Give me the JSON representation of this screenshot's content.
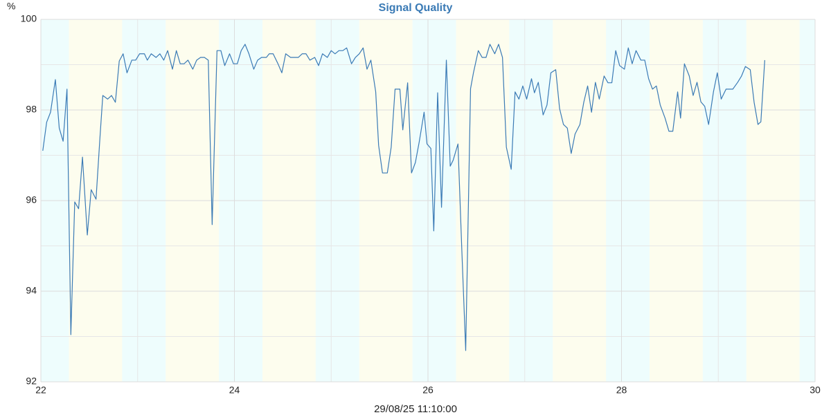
{
  "chart_data": {
    "type": "line",
    "title": "Signal Quality",
    "y_unit_label": "%",
    "x_label": "29/08/25 11:10:00",
    "color": "#3a7ab5",
    "xlim": [
      22,
      30
    ],
    "xticks": [
      22,
      24,
      26,
      28,
      30
    ],
    "x_minor_grid": [
      23,
      25,
      27,
      29
    ],
    "ylim": [
      92,
      100
    ],
    "yticks": [
      92,
      94,
      96,
      98,
      100
    ],
    "y_minor_grid": [
      93,
      95,
      97,
      99
    ],
    "grid": true,
    "bands": [
      {
        "start": 22,
        "end": 22.29,
        "color": "#eefdfd"
      },
      {
        "start": 22.29,
        "end": 22.84,
        "color": "#fdfdee"
      },
      {
        "start": 22.84,
        "end": 23.29,
        "color": "#eefdfd"
      },
      {
        "start": 23.29,
        "end": 23.84,
        "color": "#fdfdee"
      },
      {
        "start": 23.84,
        "end": 24.29,
        "color": "#eefdfd"
      },
      {
        "start": 24.29,
        "end": 24.84,
        "color": "#fdfdee"
      },
      {
        "start": 24.84,
        "end": 25.29,
        "color": "#eefdfd"
      },
      {
        "start": 25.29,
        "end": 25.84,
        "color": "#fdfdee"
      },
      {
        "start": 25.84,
        "end": 26.29,
        "color": "#eefdfd"
      },
      {
        "start": 26.29,
        "end": 26.84,
        "color": "#fdfdee"
      },
      {
        "start": 26.84,
        "end": 27.29,
        "color": "#eefdfd"
      },
      {
        "start": 27.29,
        "end": 27.84,
        "color": "#fdfdee"
      },
      {
        "start": 27.84,
        "end": 28.29,
        "color": "#eefdfd"
      },
      {
        "start": 28.29,
        "end": 28.84,
        "color": "#fdfdee"
      },
      {
        "start": 28.84,
        "end": 29.29,
        "color": "#eefdfd"
      },
      {
        "start": 29.29,
        "end": 29.84,
        "color": "#fdfdee"
      },
      {
        "start": 29.84,
        "end": 30,
        "color": "#eefdfd"
      }
    ],
    "x": [
      22.02,
      22.06,
      22.1,
      22.15,
      22.19,
      22.23,
      22.27,
      22.31,
      22.35,
      22.39,
      22.43,
      22.48,
      22.52,
      22.57,
      22.61,
      22.64,
      22.69,
      22.73,
      22.77,
      22.81,
      22.85,
      22.89,
      22.94,
      22.98,
      23.02,
      23.07,
      23.1,
      23.14,
      23.19,
      23.23,
      23.27,
      23.31,
      23.36,
      23.4,
      23.44,
      23.48,
      23.52,
      23.57,
      23.61,
      23.65,
      23.69,
      23.73,
      23.77,
      23.82,
      23.86,
      23.9,
      23.95,
      23.99,
      24.03,
      24.07,
      24.11,
      24.15,
      24.2,
      24.24,
      24.28,
      24.33,
      24.36,
      24.4,
      24.45,
      24.49,
      24.53,
      24.58,
      24.62,
      24.66,
      24.7,
      24.74,
      24.78,
      24.83,
      24.87,
      24.91,
      24.96,
      25.0,
      25.04,
      25.08,
      25.12,
      25.16,
      25.21,
      25.25,
      25.29,
      25.33,
      25.37,
      25.41,
      25.46,
      25.49,
      25.53,
      25.58,
      25.62,
      25.66,
      25.71,
      25.74,
      25.79,
      25.83,
      25.87,
      25.91,
      25.96,
      25.99,
      26.03,
      26.06,
      26.1,
      26.14,
      26.19,
      26.23,
      26.26,
      26.31,
      26.35,
      26.39,
      26.44,
      26.47,
      26.52,
      26.56,
      26.6,
      26.64,
      26.69,
      26.73,
      26.77,
      26.81,
      26.86,
      26.9,
      26.94,
      26.98,
      27.02,
      27.07,
      27.1,
      27.14,
      27.19,
      27.23,
      27.27,
      27.32,
      27.36,
      27.4,
      27.44,
      27.48,
      27.52,
      27.57,
      27.61,
      27.65,
      27.69,
      27.73,
      27.77,
      27.82,
      27.86,
      27.9,
      27.94,
      27.98,
      28.03,
      28.07,
      28.11,
      28.15,
      28.2,
      28.24,
      28.28,
      28.32,
      28.36,
      28.4,
      28.45,
      28.49,
      28.53,
      28.58,
      28.61,
      28.65,
      28.7,
      28.74,
      28.78,
      28.82,
      28.86,
      28.9,
      28.95,
      28.99,
      29.03,
      29.08,
      29.12,
      29.15,
      29.2,
      29.24,
      29.28,
      29.33,
      29.37,
      29.41,
      29.44,
      29.48
    ],
    "values": [
      97.1,
      97.73,
      97.95,
      98.67,
      97.6,
      97.31,
      98.46,
      93.04,
      95.97,
      95.82,
      96.96,
      95.24,
      96.24,
      96.03,
      97.37,
      98.32,
      98.24,
      98.32,
      98.17,
      99.08,
      99.24,
      98.82,
      99.1,
      99.1,
      99.24,
      99.24,
      99.1,
      99.24,
      99.16,
      99.24,
      99.1,
      99.31,
      98.9,
      99.31,
      99.02,
      99.02,
      99.1,
      98.9,
      99.1,
      99.16,
      99.16,
      99.1,
      95.47,
      99.31,
      99.31,
      98.98,
      99.24,
      99.02,
      99.02,
      99.31,
      99.45,
      99.24,
      98.9,
      99.1,
      99.16,
      99.16,
      99.24,
      99.24,
      99.02,
      98.82,
      99.24,
      99.16,
      99.16,
      99.16,
      99.24,
      99.24,
      99.1,
      99.16,
      98.98,
      99.24,
      99.16,
      99.31,
      99.24,
      99.31,
      99.31,
      99.37,
      99.02,
      99.16,
      99.24,
      99.37,
      98.9,
      99.1,
      98.4,
      97.22,
      96.61,
      96.61,
      97.18,
      98.46,
      98.46,
      97.56,
      98.6,
      96.61,
      96.84,
      97.3,
      97.95,
      97.25,
      97.15,
      95.33,
      98.38,
      95.85,
      99.1,
      96.76,
      96.89,
      97.25,
      94.9,
      92.69,
      98.47,
      98.82,
      99.31,
      99.16,
      99.16,
      99.45,
      99.24,
      99.45,
      99.16,
      97.18,
      96.69,
      98.4,
      98.24,
      98.53,
      98.24,
      98.69,
      98.38,
      98.61,
      97.89,
      98.11,
      98.82,
      98.89,
      98.03,
      97.68,
      97.6,
      97.04,
      97.47,
      97.68,
      98.17,
      98.53,
      97.95,
      98.61,
      98.24,
      98.75,
      98.6,
      98.6,
      99.31,
      98.98,
      98.9,
      99.37,
      99.02,
      99.31,
      99.1,
      99.1,
      98.69,
      98.46,
      98.53,
      98.11,
      97.82,
      97.53,
      97.53,
      98.4,
      97.82,
      99.02,
      98.75,
      98.32,
      98.61,
      98.18,
      98.08,
      97.68,
      98.4,
      98.82,
      98.24,
      98.46,
      98.46,
      98.46,
      98.61,
      98.75,
      98.96,
      98.89,
      98.17,
      97.68,
      97.74,
      99.1
    ]
  }
}
